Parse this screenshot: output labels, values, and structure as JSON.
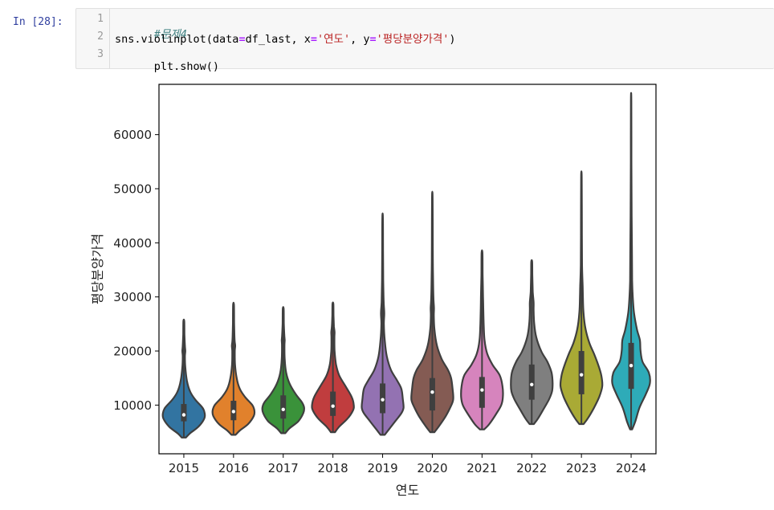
{
  "cell": {
    "prompt": "In [28]:",
    "lines": [
      {
        "no": "1",
        "comment": "#문제4"
      },
      {
        "no": "2",
        "p1": "sns.violinplot(data",
        "op1": "=",
        "p2": "df_last, x",
        "op2": "=",
        "s1": "'연도'",
        "p3": ", y",
        "op3": "=",
        "s2": "'평당분양가격'",
        "p4": ")"
      },
      {
        "no": "3",
        "text": "plt.show()"
      }
    ]
  },
  "colors": {
    "series": [
      "#3274a1",
      "#e1812c",
      "#3a923a",
      "#c03d3e",
      "#9372b2",
      "#845b53",
      "#d684bd",
      "#7f7f7f",
      "#a9aa35",
      "#2eabb8"
    ],
    "violin_edge": "#3f3f3f",
    "box": "#3f3f3f",
    "median": "#ffffff"
  },
  "chart_data": {
    "type": "violin",
    "xlabel": "연도",
    "ylabel": "평당분양가격",
    "categories": [
      "2015",
      "2016",
      "2017",
      "2018",
      "2019",
      "2020",
      "2021",
      "2022",
      "2023",
      "2024"
    ],
    "y_ticks": [
      "10000",
      "20000",
      "30000",
      "40000",
      "50000",
      "60000"
    ],
    "ylim": [
      1000,
      69300
    ],
    "violins": [
      {
        "year": "2015",
        "min": 4000,
        "max": 25500,
        "q1": 7000,
        "median": 8200,
        "q3": 10200,
        "profile": [
          [
            4000,
            0.1
          ],
          [
            4800,
            0.3
          ],
          [
            6000,
            0.7
          ],
          [
            7500,
            0.98
          ],
          [
            8500,
            1.0
          ],
          [
            9500,
            0.9
          ],
          [
            11000,
            0.55
          ],
          [
            12500,
            0.3
          ],
          [
            14500,
            0.15
          ],
          [
            17000,
            0.07
          ],
          [
            19000,
            0.05
          ],
          [
            20000,
            0.07
          ],
          [
            21000,
            0.05
          ],
          [
            23000,
            0.03
          ],
          [
            25500,
            0.02
          ]
        ]
      },
      {
        "year": "2016",
        "min": 4500,
        "max": 28500,
        "q1": 7200,
        "median": 8800,
        "q3": 10800,
        "profile": [
          [
            4500,
            0.1
          ],
          [
            5300,
            0.3
          ],
          [
            6500,
            0.7
          ],
          [
            8000,
            0.97
          ],
          [
            9000,
            1.0
          ],
          [
            10000,
            0.9
          ],
          [
            11500,
            0.55
          ],
          [
            13000,
            0.3
          ],
          [
            15000,
            0.15
          ],
          [
            17500,
            0.07
          ],
          [
            20000,
            0.06
          ],
          [
            21000,
            0.08
          ],
          [
            22000,
            0.05
          ],
          [
            25000,
            0.03
          ],
          [
            28500,
            0.02
          ]
        ]
      },
      {
        "year": "2017",
        "min": 4800,
        "max": 27800,
        "q1": 7500,
        "median": 9200,
        "q3": 11800,
        "profile": [
          [
            4800,
            0.1
          ],
          [
            5700,
            0.3
          ],
          [
            7000,
            0.72
          ],
          [
            8500,
            0.96
          ],
          [
            9500,
            1.0
          ],
          [
            10500,
            0.9
          ],
          [
            12000,
            0.6
          ],
          [
            14000,
            0.3
          ],
          [
            16000,
            0.14
          ],
          [
            18500,
            0.07
          ],
          [
            21000,
            0.06
          ],
          [
            22000,
            0.07
          ],
          [
            23000,
            0.05
          ],
          [
            25000,
            0.03
          ],
          [
            27800,
            0.02
          ]
        ]
      },
      {
        "year": "2018",
        "min": 5000,
        "max": 28700,
        "q1": 8000,
        "median": 9800,
        "q3": 12500,
        "profile": [
          [
            5000,
            0.1
          ],
          [
            6000,
            0.3
          ],
          [
            7500,
            0.7
          ],
          [
            9000,
            0.96
          ],
          [
            10000,
            1.0
          ],
          [
            11500,
            0.9
          ],
          [
            13500,
            0.6
          ],
          [
            15500,
            0.3
          ],
          [
            17500,
            0.15
          ],
          [
            20000,
            0.08
          ],
          [
            22500,
            0.07
          ],
          [
            23500,
            0.08
          ],
          [
            24500,
            0.05
          ],
          [
            26500,
            0.03
          ],
          [
            28700,
            0.02
          ]
        ]
      },
      {
        "year": "2019",
        "min": 4500,
        "max": 44600,
        "q1": 8500,
        "median": 11000,
        "q3": 14000,
        "profile": [
          [
            4500,
            0.1
          ],
          [
            5500,
            0.3
          ],
          [
            7000,
            0.6
          ],
          [
            8500,
            0.9
          ],
          [
            9500,
            1.0
          ],
          [
            11000,
            0.97
          ],
          [
            13000,
            0.9
          ],
          [
            14500,
            0.7
          ],
          [
            16500,
            0.4
          ],
          [
            19000,
            0.2
          ],
          [
            22000,
            0.1
          ],
          [
            25000,
            0.06
          ],
          [
            27000,
            0.08
          ],
          [
            29000,
            0.05
          ],
          [
            33000,
            0.03
          ],
          [
            38000,
            0.02
          ],
          [
            44600,
            0.015
          ]
        ]
      },
      {
        "year": "2020",
        "min": 5000,
        "max": 48400,
        "q1": 9000,
        "median": 12400,
        "q3": 15000,
        "profile": [
          [
            5000,
            0.1
          ],
          [
            6000,
            0.3
          ],
          [
            8000,
            0.65
          ],
          [
            9500,
            0.85
          ],
          [
            11000,
            1.0
          ],
          [
            13000,
            0.97
          ],
          [
            15000,
            0.9
          ],
          [
            16500,
            0.75
          ],
          [
            18500,
            0.45
          ],
          [
            21000,
            0.22
          ],
          [
            24000,
            0.1
          ],
          [
            26500,
            0.07
          ],
          [
            28000,
            0.08
          ],
          [
            30000,
            0.05
          ],
          [
            35000,
            0.03
          ],
          [
            40000,
            0.02
          ],
          [
            48400,
            0.015
          ]
        ]
      },
      {
        "year": "2021",
        "min": 5500,
        "max": 38100,
        "q1": 9500,
        "median": 12800,
        "q3": 15200,
        "profile": [
          [
            5500,
            0.1
          ],
          [
            6500,
            0.35
          ],
          [
            8500,
            0.7
          ],
          [
            10000,
            0.92
          ],
          [
            11500,
            1.0
          ],
          [
            13500,
            0.98
          ],
          [
            15500,
            0.85
          ],
          [
            17500,
            0.5
          ],
          [
            19500,
            0.25
          ],
          [
            22000,
            0.12
          ],
          [
            25000,
            0.08
          ],
          [
            28000,
            0.06
          ],
          [
            30000,
            0.05
          ],
          [
            34000,
            0.03
          ],
          [
            38100,
            0.02
          ]
        ]
      },
      {
        "year": "2022",
        "min": 6500,
        "max": 36500,
        "q1": 11000,
        "median": 13800,
        "q3": 17500,
        "profile": [
          [
            6500,
            0.1
          ],
          [
            7500,
            0.3
          ],
          [
            9500,
            0.6
          ],
          [
            11000,
            0.82
          ],
          [
            12500,
            0.97
          ],
          [
            14000,
            1.0
          ],
          [
            16000,
            0.95
          ],
          [
            18000,
            0.75
          ],
          [
            20000,
            0.45
          ],
          [
            22500,
            0.22
          ],
          [
            25000,
            0.12
          ],
          [
            27500,
            0.09
          ],
          [
            29000,
            0.09
          ],
          [
            31000,
            0.05
          ],
          [
            34000,
            0.03
          ],
          [
            36500,
            0.02
          ]
        ]
      },
      {
        "year": "2023",
        "min": 6500,
        "max": 52200,
        "q1": 12000,
        "median": 15600,
        "q3": 20000,
        "profile": [
          [
            6500,
            0.1
          ],
          [
            7500,
            0.3
          ],
          [
            9500,
            0.6
          ],
          [
            11500,
            0.85
          ],
          [
            13500,
            1.0
          ],
          [
            15500,
            0.95
          ],
          [
            17500,
            0.8
          ],
          [
            19500,
            0.6
          ],
          [
            21500,
            0.38
          ],
          [
            24000,
            0.2
          ],
          [
            27000,
            0.1
          ],
          [
            30000,
            0.07
          ],
          [
            32000,
            0.06
          ],
          [
            36000,
            0.03
          ],
          [
            44000,
            0.02
          ],
          [
            52200,
            0.015
          ]
        ]
      },
      {
        "year": "2024",
        "min": 5500,
        "max": 66300,
        "q1": 13000,
        "median": 17300,
        "q3": 21500,
        "profile": [
          [
            5500,
            0.05
          ],
          [
            7000,
            0.2
          ],
          [
            9500,
            0.4
          ],
          [
            12000,
            0.7
          ],
          [
            14000,
            0.9
          ],
          [
            16000,
            0.85
          ],
          [
            18000,
            0.55
          ],
          [
            20000,
            0.45
          ],
          [
            22000,
            0.42
          ],
          [
            24000,
            0.28
          ],
          [
            27000,
            0.14
          ],
          [
            30000,
            0.08
          ],
          [
            33000,
            0.05
          ],
          [
            38000,
            0.04
          ],
          [
            45000,
            0.025
          ],
          [
            55000,
            0.015
          ],
          [
            66300,
            0.01
          ]
        ]
      }
    ]
  }
}
